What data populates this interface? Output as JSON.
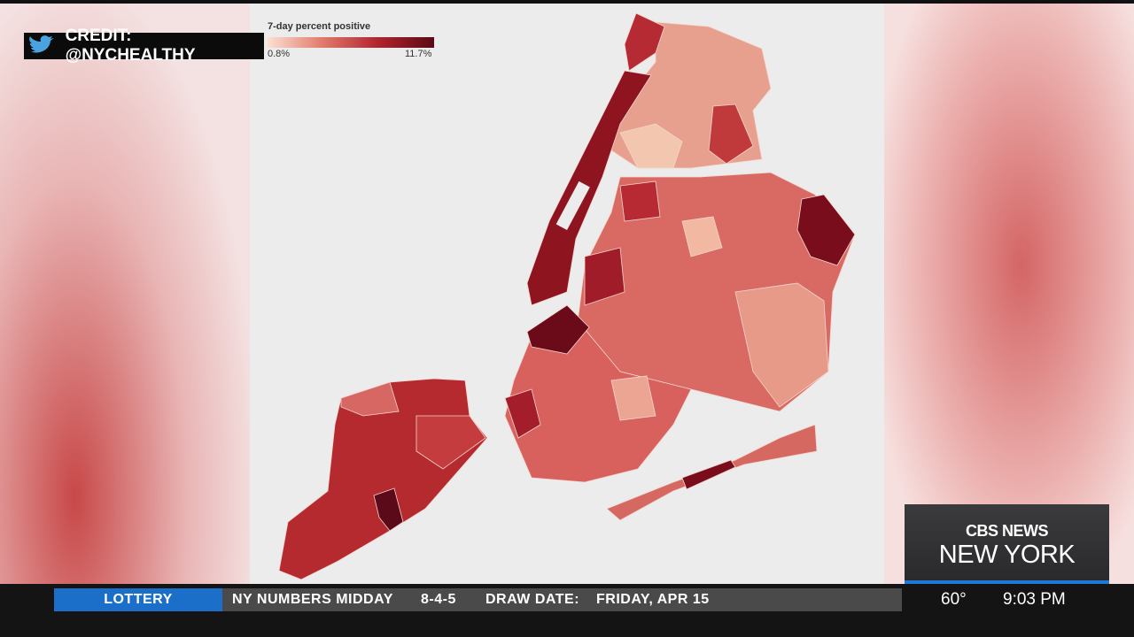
{
  "credit": "CREDIT: @NYCHEALTHY",
  "legend": {
    "title": "7-day percent positive",
    "min_label": "0.8%",
    "max_label": "11.7%"
  },
  "network": {
    "brand": "CBS NEWS",
    "station": "NEW YORK"
  },
  "ticker": {
    "section": "LOTTERY",
    "game": "NY NUMBERS MIDDAY",
    "numbers": "8-4-5",
    "date_label": "DRAW DATE:",
    "date": "FRIDAY, APR 15"
  },
  "weather": {
    "temperature": "60°"
  },
  "clock": "9:03 PM"
}
